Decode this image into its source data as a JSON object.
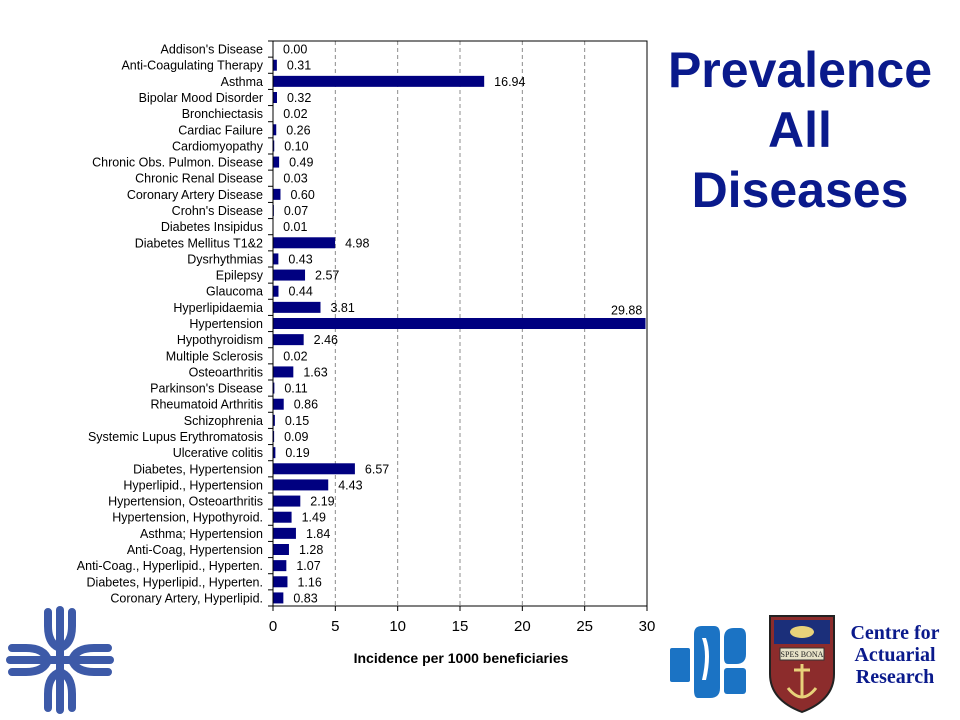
{
  "slide": {
    "title_lines": [
      "Prevalence",
      "All",
      "Diseases"
    ],
    "org_lines": [
      "Centre for",
      "Actuarial",
      "Research"
    ],
    "crest_motto": "SPES BONA"
  },
  "colors": {
    "bar": "#000080",
    "title": "#0a1a8c",
    "grid": "#8c8c8c"
  },
  "chart_data": {
    "type": "bar",
    "orientation": "horizontal",
    "title": "",
    "xlabel": "Incidence per 1000 beneficiaries",
    "ylabel": "",
    "xlim": [
      0,
      30
    ],
    "xticks": [
      0,
      5,
      10,
      15,
      20,
      25,
      30
    ],
    "grid": "vertical dashed",
    "legend": "none",
    "categories": [
      "Addison's Disease",
      "Anti-Coagulating Therapy",
      "Asthma",
      "Bipolar Mood Disorder",
      "Bronchiectasis",
      "Cardiac Failure",
      "Cardiomyopathy",
      "Chronic Obs. Pulmon. Disease",
      "Chronic Renal Disease",
      "Coronary Artery Disease",
      "Crohn's Disease",
      "Diabetes Insipidus",
      "Diabetes Mellitus T1&2",
      "Dysrhythmias",
      "Epilepsy",
      "Glaucoma",
      "Hyperlipidaemia",
      "Hypertension",
      "Hypothyroidism",
      "Multiple Sclerosis",
      "Osteoarthritis",
      "Parkinson's Disease",
      "Rheumatoid Arthritis",
      "Schizophrenia",
      "Systemic Lupus Erythromatosis",
      "Ulcerative colitis",
      "Diabetes, Hypertension",
      "Hyperlipid., Hypertension",
      "Hypertension, Osteoarthritis",
      "Hypertension, Hypothyroid.",
      "Asthma; Hypertension",
      "Anti-Coag, Hypertension",
      "Anti-Coag., Hyperlipid., Hyperten.",
      "Diabetes, Hyperlipid., Hyperten.",
      "Coronary Artery, Hyperlipid."
    ],
    "values": [
      0.0,
      0.31,
      16.94,
      0.32,
      0.02,
      0.26,
      0.1,
      0.49,
      0.03,
      0.6,
      0.07,
      0.01,
      4.98,
      0.43,
      2.57,
      0.44,
      3.81,
      29.88,
      2.46,
      0.02,
      1.63,
      0.11,
      0.86,
      0.15,
      0.09,
      0.19,
      6.57,
      4.43,
      2.19,
      1.49,
      1.84,
      1.28,
      1.07,
      1.16,
      0.83
    ],
    "value_labels": [
      "0.00",
      "0.31",
      "16.94",
      "0.32",
      "0.02",
      "0.26",
      "0.10",
      "0.49",
      "0.03",
      "0.60",
      "0.07",
      "0.01",
      "4.98",
      "0.43",
      "2.57",
      "0.44",
      "3.81",
      "29.88",
      "2.46",
      "0.02",
      "1.63",
      "0.11",
      "0.86",
      "0.15",
      "0.09",
      "0.19",
      "6.57",
      "4.43",
      "2.19",
      "1.49",
      "1.84",
      "1.28",
      "1.07",
      "1.16",
      "0.83"
    ]
  }
}
